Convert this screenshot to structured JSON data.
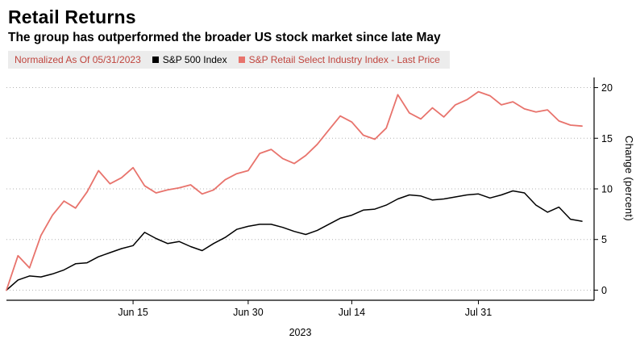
{
  "header": {
    "title": "Retail Returns",
    "subtitle": "The group has outperformed the broader US stock market since late May"
  },
  "legend": {
    "normalized_label": "Normalized As Of 05/31/2023"
  },
  "axis": {
    "year_label": "2023"
  },
  "chart_data": {
    "type": "line",
    "title": "Retail Returns",
    "subtitle": "The group has outperformed the broader US stock market since late May",
    "xlabel": "2023",
    "ylabel": "Change (percent)",
    "ylim": [
      -1,
      21
    ],
    "yticks": [
      0,
      5,
      10,
      15,
      20
    ],
    "xticks": [
      {
        "label": "Jun 15",
        "index": 11
      },
      {
        "label": "Jun 30",
        "index": 21
      },
      {
        "label": "Jul 14",
        "index": 30
      },
      {
        "label": "Jul 31",
        "index": 41
      }
    ],
    "grid": "horizontal-dotted",
    "legend_position": "top",
    "normalized_as_of": "05/31/2023",
    "colors": {
      "sp500_line": "#000000",
      "retail_line": "#e8736c",
      "legend_red_text": "#c0453e",
      "grid": "#b3b3b3",
      "axis": "#000000",
      "legend_bg": "#ececec"
    },
    "series": [
      {
        "name": "S&P 500 Index",
        "color": "#000000",
        "values": [
          0.0,
          1.0,
          1.4,
          1.3,
          1.6,
          2.0,
          2.6,
          2.7,
          3.3,
          3.7,
          4.1,
          4.4,
          5.7,
          5.1,
          4.6,
          4.8,
          4.3,
          3.9,
          4.6,
          5.2,
          6.0,
          6.3,
          6.5,
          6.5,
          6.2,
          5.8,
          5.5,
          5.9,
          6.5,
          7.1,
          7.4,
          7.9,
          8.0,
          8.4,
          9.0,
          9.4,
          9.3,
          8.9,
          9.0,
          9.2,
          9.4,
          9.5,
          9.1,
          9.4,
          9.8,
          9.6,
          8.4,
          7.7,
          8.2,
          7.0,
          6.8
        ]
      },
      {
        "name": "S&P Retail Select Industry Index - Last Price",
        "color": "#e8736c",
        "values": [
          0.0,
          3.4,
          2.2,
          5.4,
          7.4,
          8.8,
          8.1,
          9.7,
          11.8,
          10.5,
          11.1,
          12.1,
          10.3,
          9.6,
          9.9,
          10.1,
          10.4,
          9.5,
          9.9,
          10.9,
          11.5,
          11.8,
          13.5,
          13.9,
          13.0,
          12.5,
          13.3,
          14.4,
          15.8,
          17.2,
          16.6,
          15.3,
          14.9,
          16.0,
          19.3,
          17.5,
          16.9,
          18.0,
          17.1,
          18.3,
          18.8,
          19.6,
          19.2,
          18.3,
          18.6,
          17.9,
          17.6,
          17.8,
          16.7,
          16.3,
          16.2
        ]
      }
    ]
  }
}
